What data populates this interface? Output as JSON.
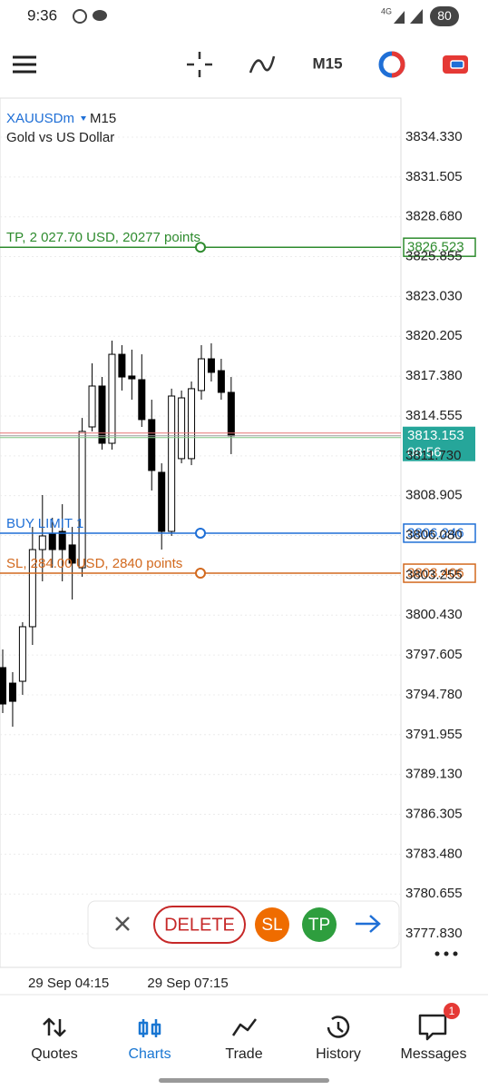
{
  "status_bar": {
    "time": "9:36",
    "network": "4G",
    "battery": "80"
  },
  "toolbar": {
    "timeframe": "M15"
  },
  "chart_data": {
    "type": "candlestick",
    "symbol": "XAUUSDm",
    "timeframe": "M15",
    "subtitle": "Gold vs US Dollar",
    "categories": [
      null,
      null,
      null,
      null,
      null,
      null,
      null,
      "29 Sep 04:15",
      null,
      null,
      null,
      null,
      null,
      null,
      null,
      null,
      null,
      null,
      null,
      "29 Sep 07:15",
      null,
      null,
      null,
      null
    ],
    "open": [
      3796.71,
      3795.61,
      3795.74,
      3799.61,
      3805.08,
      3806.18,
      3806.37,
      3805.41,
      3803.79,
      3813.78,
      3816.68,
      3812.62,
      3818.93,
      3817.39,
      3817.13,
      3814.3,
      3810.56,
      3806.37,
      3811.53,
      3811.53,
      3816.36,
      3818.61,
      3817.77,
      3816.23
    ],
    "high": [
      3798.0,
      3796.39,
      3799.93,
      3806.69,
      3808.95,
      3807.34,
      3808.3,
      3806.69,
      3814.42,
      3818.29,
      3817.32,
      3819.9,
      3819.58,
      3819.26,
      3818.93,
      3815.71,
      3811.2,
      3816.49,
      3816.36,
      3817.0,
      3819.58,
      3819.71,
      3818.61,
      3817.32
    ],
    "low": [
      3793.49,
      3792.52,
      3794.78,
      3798.32,
      3802.83,
      3803.79,
      3802.83,
      3801.54,
      3803.15,
      3813.46,
      3812.17,
      3812.17,
      3816.36,
      3815.71,
      3813.78,
      3809.27,
      3805.08,
      3806.05,
      3811.2,
      3811.07,
      3815.71,
      3817.0,
      3815.71,
      3811.85
    ],
    "close": [
      3794.13,
      3794.32,
      3799.61,
      3805.08,
      3806.05,
      3805.08,
      3805.08,
      3804.12,
      3813.46,
      3816.68,
      3812.62,
      3818.93,
      3817.32,
      3817.19,
      3814.3,
      3810.69,
      3806.37,
      3815.97,
      3815.84,
      3816.49,
      3818.61,
      3817.65,
      3816.23,
      3813.14
    ],
    "up_color": "#ffffff",
    "down_color": "#000000",
    "ylim": [
      3775.45,
      3837.1
    ],
    "yticks": [
      {
        "value": 3834.33,
        "label": "3834.330"
      },
      {
        "value": 3831.505,
        "label": "3831.505"
      },
      {
        "value": 3828.68,
        "label": "3828.680"
      },
      {
        "value": 3825.855,
        "label": "3825.855"
      },
      {
        "value": 3823.03,
        "label": "3823.030"
      },
      {
        "value": 3820.205,
        "label": "3820.205"
      },
      {
        "value": 3817.38,
        "label": "3817.380"
      },
      {
        "value": 3814.555,
        "label": "3814.555"
      },
      {
        "value": 3811.73,
        "label": "3811.730"
      },
      {
        "value": 3808.905,
        "label": "3808.905"
      },
      {
        "value": 3806.08,
        "label": "3806.080"
      },
      {
        "value": 3803.255,
        "label": "3803.255"
      },
      {
        "value": 3800.43,
        "label": "3800.430"
      },
      {
        "value": 3797.605,
        "label": "3797.605"
      },
      {
        "value": 3794.78,
        "label": "3794.780"
      },
      {
        "value": 3791.955,
        "label": "3791.955"
      },
      {
        "value": 3789.13,
        "label": "3789.130"
      },
      {
        "value": 3786.305,
        "label": "3786.305"
      },
      {
        "value": 3783.48,
        "label": "3783.480"
      },
      {
        "value": 3780.655,
        "label": "3780.655"
      },
      {
        "value": 3777.83,
        "label": "3777.830"
      }
    ],
    "grid": true,
    "levels": [
      {
        "label": "TP, 2 027.70 USD, 20277 points",
        "value": 3826.523,
        "color": "#2e8b2e"
      },
      {
        "label": "BUY LIMIT 1",
        "value": 3806.246,
        "color": "#1f6fd6"
      },
      {
        "label": "SL, 284.00 USD, 2840 points",
        "value": 3803.406,
        "color": "#d2691e"
      }
    ],
    "current_price": {
      "value": 3813.153,
      "countdown": "08:56",
      "color": "#26a69a"
    }
  },
  "order_bar": {
    "delete": "DELETE",
    "sl": "SL",
    "tp": "TP"
  },
  "nav": {
    "items": [
      "Quotes",
      "Charts",
      "Trade",
      "History",
      "Messages"
    ],
    "active": 1,
    "badge": 1
  }
}
